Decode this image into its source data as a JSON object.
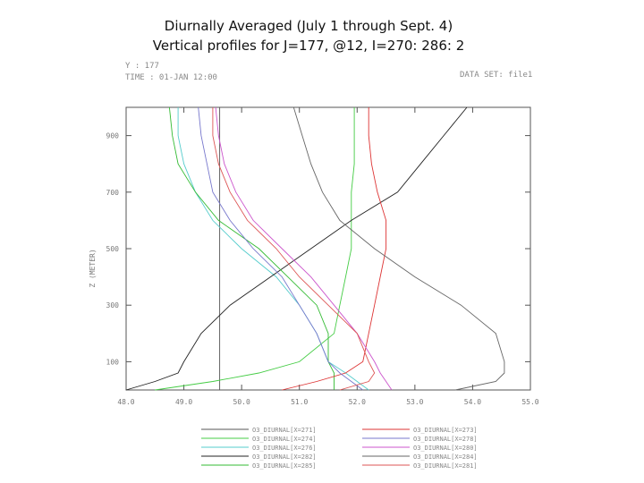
{
  "title": {
    "line1": "Diurnally Averaged (July 1 through Sept. 4)",
    "line2": "Vertical profiles for J=177, @12, I=270: 286: 2"
  },
  "header": {
    "y_text": "Y : 177",
    "time_text": "TIME : 01-JAN 12:00",
    "dataset_text": "DATA SET: file1"
  },
  "chart_data": {
    "type": "line",
    "xlabel": "",
    "ylabel": "Z (METER)",
    "xlim": [
      48.0,
      55.0
    ],
    "ylim": [
      0,
      1000
    ],
    "x_ticks": [
      "48.0",
      "49.0",
      "50.0",
      "51.0",
      "52.0",
      "53.0",
      "54.0",
      "55.0"
    ],
    "y_ticks": [
      "100",
      "300",
      "500",
      "700",
      "900"
    ],
    "y_tick_values": [
      100,
      300,
      500,
      700,
      900
    ],
    "grid": false,
    "legend_position": "bottom",
    "series": [
      {
        "name": "O3_DIURNAL[X=271]",
        "color": "#555555",
        "y": [
          0,
          30,
          60,
          100,
          200,
          300,
          400,
          500,
          600,
          700,
          800,
          900,
          1000
        ],
        "x": [
          49.62,
          49.62,
          49.62,
          49.62,
          49.62,
          49.62,
          49.62,
          49.62,
          49.62,
          49.62,
          49.62,
          49.62,
          49.62
        ]
      },
      {
        "name": "O3_DIURNAL[X=274]",
        "color": "#44cc44",
        "y": [
          0,
          30,
          60,
          100,
          200,
          300,
          400,
          500,
          600,
          700,
          800,
          900,
          1000
        ],
        "x": [
          48.5,
          49.5,
          50.3,
          51.0,
          51.6,
          51.7,
          51.8,
          51.9,
          51.9,
          51.9,
          51.95,
          51.95,
          51.95
        ]
      },
      {
        "name": "O3_DIURNAL[X=276]",
        "color": "#55cccc",
        "y": [
          0,
          30,
          60,
          100,
          200,
          300,
          400,
          500,
          600,
          700,
          800,
          900,
          1000
        ],
        "x": [
          52.2,
          52.0,
          51.8,
          51.5,
          51.3,
          51.0,
          50.6,
          50.0,
          49.5,
          49.2,
          49.0,
          48.9,
          48.9
        ]
      },
      {
        "name": "O3_DIURNAL[X=282]",
        "color": "#222222",
        "y": [
          0,
          30,
          60,
          100,
          200,
          300,
          400,
          500,
          600,
          700,
          800,
          900,
          1000
        ],
        "x": [
          48.0,
          48.5,
          48.9,
          49.0,
          49.3,
          49.8,
          50.5,
          51.2,
          51.9,
          52.7,
          53.1,
          53.5,
          53.9
        ]
      },
      {
        "name": "O3_DIURNAL[X=285]",
        "color": "#33bb33",
        "y": [
          0,
          30,
          60,
          100,
          200,
          300,
          400,
          500,
          600,
          700,
          800,
          900,
          1000
        ],
        "x": [
          51.6,
          51.6,
          51.6,
          51.5,
          51.5,
          51.3,
          50.8,
          50.3,
          49.6,
          49.2,
          48.9,
          48.8,
          48.75
        ]
      },
      {
        "name": "O3_DIURNAL[X=273]",
        "color": "#dd3333",
        "y": [
          0,
          30,
          60,
          100,
          200,
          300,
          400,
          500,
          600,
          700,
          800,
          900,
          1000
        ],
        "x": [
          50.7,
          51.3,
          51.8,
          52.1,
          52.2,
          52.3,
          52.4,
          52.5,
          52.5,
          52.35,
          52.25,
          52.2,
          52.2
        ]
      },
      {
        "name": "O3_DIURNAL[X=278]",
        "color": "#7777cc",
        "y": [
          0,
          30,
          60,
          100,
          200,
          300,
          400,
          500,
          600,
          700,
          800,
          900,
          1000
        ],
        "x": [
          52.1,
          51.9,
          51.7,
          51.5,
          51.3,
          51.0,
          50.7,
          50.2,
          49.8,
          49.5,
          49.4,
          49.3,
          49.25
        ]
      },
      {
        "name": "O3_DIURNAL[X=280]",
        "color": "#cc55cc",
        "y": [
          0,
          30,
          60,
          100,
          200,
          300,
          400,
          500,
          600,
          700,
          800,
          900,
          1000
        ],
        "x": [
          52.6,
          52.5,
          52.4,
          52.3,
          52.0,
          51.6,
          51.2,
          50.7,
          50.2,
          49.9,
          49.7,
          49.6,
          49.55
        ]
      },
      {
        "name": "O3_DIURNAL[X=284]",
        "color": "#666666",
        "y": [
          0,
          30,
          60,
          100,
          200,
          300,
          400,
          500,
          600,
          700,
          800,
          900,
          1000
        ],
        "x": [
          53.7,
          54.4,
          54.55,
          54.55,
          54.4,
          53.8,
          53.0,
          52.3,
          51.7,
          51.4,
          51.2,
          51.05,
          50.9
        ]
      },
      {
        "name": "O3_DIURNAL[X=281]",
        "color": "#dd5555",
        "y": [
          0,
          30,
          60,
          100,
          200,
          300,
          400,
          500,
          600,
          700,
          800,
          900,
          1000
        ],
        "x": [
          51.7,
          52.2,
          52.3,
          52.2,
          52.0,
          51.5,
          51.0,
          50.6,
          50.1,
          49.8,
          49.6,
          49.5,
          49.5
        ]
      }
    ]
  },
  "legend": {
    "left": [
      "O3_DIURNAL[X=271]",
      "O3_DIURNAL[X=274]",
      "O3_DIURNAL[X=276]",
      "O3_DIURNAL[X=282]",
      "O3_DIURNAL[X=285]"
    ],
    "right": [
      "O3_DIURNAL[X=273]",
      "O3_DIURNAL[X=278]",
      "O3_DIURNAL[X=280]",
      "O3_DIURNAL[X=284]",
      "O3_DIURNAL[X=281]"
    ],
    "left_colors": [
      "#555555",
      "#44cc44",
      "#55cccc",
      "#222222",
      "#33bb33"
    ],
    "right_colors": [
      "#dd3333",
      "#7777cc",
      "#cc55cc",
      "#666666",
      "#dd5555"
    ]
  }
}
